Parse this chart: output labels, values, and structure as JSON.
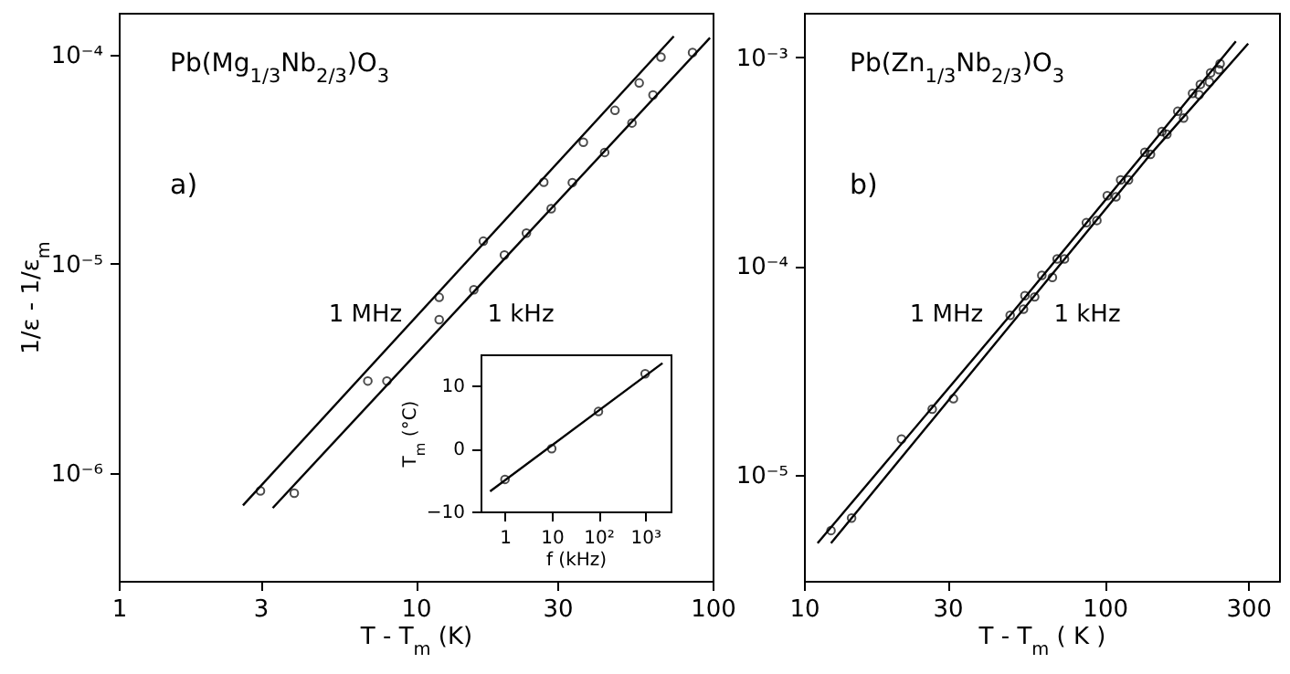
{
  "chart_data": [
    {
      "type": "scatter",
      "title": "Pb(Mg$_{1/3}$Nb$_{2/3}$)O$_{3}$",
      "subtitle": "a)",
      "xlabel": "T - T$_{m}$  (K)",
      "ylabel": "1/ε - 1/ε$_{m}$",
      "log": "xy",
      "grid": false,
      "xlim": [
        1,
        100
      ],
      "xticks": [
        1,
        3,
        10,
        30,
        100
      ],
      "ylim": [
        3.05e-07,
        0.000158
      ],
      "yticks": [
        {
          "value": 1e-06,
          "label": "10⁻⁶"
        },
        {
          "value": 1e-05,
          "label": "10⁻⁵"
        },
        {
          "value": 0.0001,
          "label": "10⁻⁴"
        }
      ],
      "series": [
        {
          "color": "#000000",
          "marker": "circle",
          "x": [
            3.0,
            6.9,
            12.0,
            16.9,
            27,
            36.7,
            46.9,
            56.6,
            67
          ],
          "values": [
            8.2e-07,
            2.75e-06,
            6.9e-06,
            1.28e-05,
            2.45e-05,
            3.8e-05,
            5.4e-05,
            7.3e-05,
            9.7e-05
          ]
        },
        {
          "color": "#000000",
          "marker": "circle",
          "x": [
            3.9,
            8.0,
            12.0,
            15.7,
            19.9,
            23.6,
            28.6,
            33.7,
            43.3,
            53.5,
            63,
            85.6
          ],
          "values": [
            8e-07,
            2.75e-06,
            5.4e-06,
            7.5e-06,
            1.1e-05,
            1.4e-05,
            1.83e-05,
            2.44e-05,
            3.4e-05,
            4.7e-05,
            6.4e-05,
            0.000102
          ]
        },
        {
          "type": "line",
          "color": "#000000",
          "marker": "none",
          "line_style": "solid",
          "x": [
            2.62,
            74
          ],
          "values": [
            7e-07,
            0.000122
          ]
        },
        {
          "type": "line",
          "color": "#000000",
          "marker": "none",
          "line_style": "solid",
          "x": [
            3.3,
            98
          ],
          "values": [
            6.8e-07,
            0.00012
          ]
        }
      ],
      "annotations": [
        "1 MHz",
        "1 kHz"
      ]
    },
    {
      "type": "scatter",
      "xlabel": "f (kHz)",
      "ylabel": "T$_{m}$ (°C)",
      "log": "x",
      "grid": false,
      "xlim": [
        0.3,
        3500
      ],
      "xticks": [
        {
          "value": 1,
          "label": "1"
        },
        {
          "value": 10,
          "label": "10"
        },
        {
          "value": 100,
          "label": "10²"
        },
        {
          "value": 1000,
          "label": "10³"
        }
      ],
      "ylim": [
        -10,
        15
      ],
      "yticks": [
        -10,
        0,
        10
      ],
      "series": [
        {
          "color": "#000000",
          "marker": "circle",
          "x": [
            1,
            10,
            100,
            1000
          ],
          "values": [
            -4.9,
            0,
            5.9,
            11.9
          ]
        },
        {
          "type": "line",
          "color": "#000000",
          "marker": "none",
          "line_style": "solid",
          "x": [
            0.48,
            2350
          ],
          "values": [
            -6.8,
            13.6
          ]
        }
      ]
    },
    {
      "type": "scatter",
      "title": "Pb(Zn$_{1/3}$Nb$_{2/3}$)O$_{3}$",
      "subtitle": "b)",
      "xlabel": "T - T$_{m}$ ( K )",
      "log": "xy",
      "grid": false,
      "xlim": [
        10,
        380
      ],
      "xticks": [
        10,
        30,
        100,
        300
      ],
      "ylim": [
        3.1e-06,
        0.00163
      ],
      "yticks": [
        {
          "value": 1e-05,
          "label": "10⁻⁵"
        },
        {
          "value": 0.0001,
          "label": "10⁻⁴"
        },
        {
          "value": 0.001,
          "label": "10⁻³"
        }
      ],
      "series": [
        {
          "color": "#000000",
          "marker": "circle",
          "x": [
            12.3,
            21.1,
            26.7,
            48.5,
            54.3,
            61.8,
            69.5,
            86.9,
            102,
            113,
            136,
            155,
            175,
            196,
            208,
            225,
            242
          ],
          "values": [
            5.4e-06,
            1.48e-05,
            2.06e-05,
            5.8e-05,
            7.2e-05,
            9e-05,
            0.000108,
            0.000161,
            0.000217,
            0.000258,
            0.00035,
            0.00044,
            0.00055,
            0.00067,
            0.00074,
            0.00084,
            0.00093
          ]
        },
        {
          "color": "#000000",
          "marker": "circle",
          "x": [
            14.4,
            31.4,
            53.7,
            58.5,
            67,
            73.5,
            94.2,
            109,
            120,
            142,
            161,
            183,
            206,
            223,
            240
          ],
          "values": [
            6.2e-06,
            2.31e-05,
            6.2e-05,
            7.1e-05,
            8.8e-05,
            0.000108,
            0.000165,
            0.000214,
            0.000258,
            0.000342,
            0.000427,
            0.00051,
            0.00066,
            0.00076,
            0.00087
          ]
        },
        {
          "type": "line",
          "color": "#000000",
          "marker": "none",
          "line_style": "solid",
          "x": [
            11.1,
            48.5,
            136,
            273
          ],
          "values": [
            4.7e-06,
            5.8e-05,
            0.00035,
            0.00119
          ]
        },
        {
          "type": "line",
          "color": "#000000",
          "marker": "none",
          "line_style": "solid",
          "x": [
            12.3,
            53.7,
            142,
            300
          ],
          "values": [
            4.7e-06,
            6.2e-05,
            0.000342,
            0.00116
          ]
        }
      ],
      "annotations": [
        "1 MHz",
        "1 kHz"
      ]
    }
  ]
}
